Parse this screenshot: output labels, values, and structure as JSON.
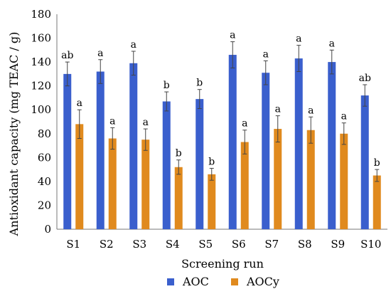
{
  "chart_data": {
    "type": "bar",
    "xlabel": "Screening run",
    "ylabel": "Antioxidant capacity (mg TEAC / g)",
    "ylim": [
      0,
      180
    ],
    "yticks": [
      0,
      20,
      40,
      60,
      80,
      100,
      120,
      140,
      160,
      180
    ],
    "grid": false,
    "legend_position": "bottom",
    "categories": [
      "S1",
      "S2",
      "S3",
      "S4",
      "S5",
      "S6",
      "S7",
      "S8",
      "S9",
      "S10"
    ],
    "series": [
      {
        "name": "AOC",
        "color": "#3a5fcd",
        "values": [
          130,
          132,
          139,
          107,
          109,
          146,
          131,
          143,
          140,
          112
        ],
        "errors": [
          10,
          10,
          10,
          8,
          8,
          11,
          10,
          11,
          10,
          9
        ],
        "labels": [
          "ab",
          "a",
          "a",
          "b",
          "b",
          "a",
          "a",
          "a",
          "a",
          "ab"
        ]
      },
      {
        "name": "AOCy",
        "color": "#e08a1e",
        "values": [
          88,
          76,
          75,
          52,
          46,
          73,
          84,
          83,
          80,
          45
        ],
        "errors": [
          12,
          9,
          9,
          6,
          5,
          10,
          11,
          11,
          9,
          5
        ],
        "labels": [
          "a",
          "a",
          "a",
          "b",
          "b",
          "a",
          "a",
          "a",
          "a",
          "b"
        ]
      }
    ]
  }
}
